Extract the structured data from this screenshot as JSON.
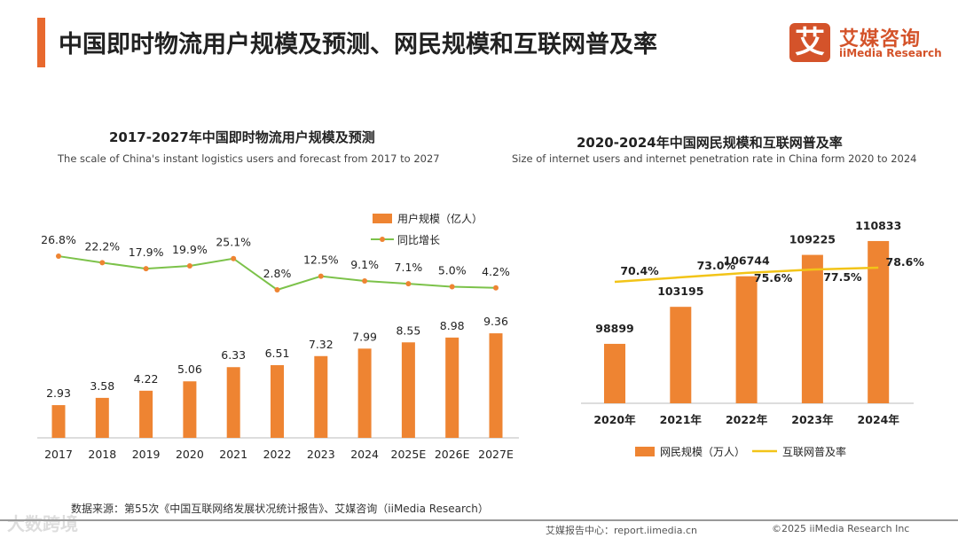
{
  "title": "中国即时物流用户规模及预测、网民规模和互联网普及率",
  "logo": {
    "mark": "艾",
    "cn": "艾媒咨询",
    "en": "iiMedia Research"
  },
  "source": "数据来源：第55次《中国互联网络发展状况统计报告》、艾媒咨询（iiMedia Research）",
  "footer": {
    "site": "艾媒报告中心：report.iimedia.cn",
    "copyright": "©2025  iiMedia Research  Inc"
  },
  "watermark": "大数跨境",
  "colors": {
    "bar": "#ee8432",
    "line1": "#7cc24a",
    "line2": "#f2c418",
    "accent": "#e8692e"
  },
  "chart_data": [
    {
      "type": "bar+line",
      "title": "2017-2027年中国即时物流用户规模及预测",
      "subtitle": "The scale of China's instant logistics users and forecast from 2017 to 2027",
      "categories": [
        "2017",
        "2018",
        "2019",
        "2020",
        "2021",
        "2022",
        "2023",
        "2024",
        "2025E",
        "2026E",
        "2027E"
      ],
      "series": [
        {
          "name": "用户规模（亿人）",
          "type": "bar",
          "values": [
            2.93,
            3.58,
            4.22,
            5.06,
            6.33,
            6.51,
            7.32,
            7.99,
            8.55,
            8.98,
            9.36
          ]
        },
        {
          "name": "同比增长",
          "type": "line",
          "values": [
            26.8,
            22.2,
            17.9,
            19.9,
            25.1,
            2.8,
            12.5,
            9.1,
            7.1,
            5.0,
            4.2
          ],
          "labels": [
            "26.8%",
            "22.2%",
            "17.9%",
            "19.9%",
            "25.1%",
            "2.8%",
            "12.5%",
            "9.1%",
            "7.1%",
            "5.0%",
            "4.2%"
          ]
        }
      ],
      "legend": "top-right"
    },
    {
      "type": "bar+line",
      "title": "2020-2024年中国网民规模和互联网普及率",
      "subtitle": "Size of internet users and internet penetration rate in China form 2020 to 2024",
      "categories": [
        "2020年",
        "2021年",
        "2022年",
        "2023年",
        "2024年"
      ],
      "series": [
        {
          "name": "网民规模（万人）",
          "type": "bar",
          "values": [
            98899,
            103195,
            106744,
            109225,
            110833
          ]
        },
        {
          "name": "互联网普及率",
          "type": "line",
          "values": [
            70.4,
            73.0,
            75.6,
            77.5,
            78.6
          ],
          "labels": [
            "70.4%",
            "73.0%",
            "75.6%",
            "77.5%",
            "78.6%"
          ]
        }
      ],
      "legend": "bottom"
    }
  ]
}
